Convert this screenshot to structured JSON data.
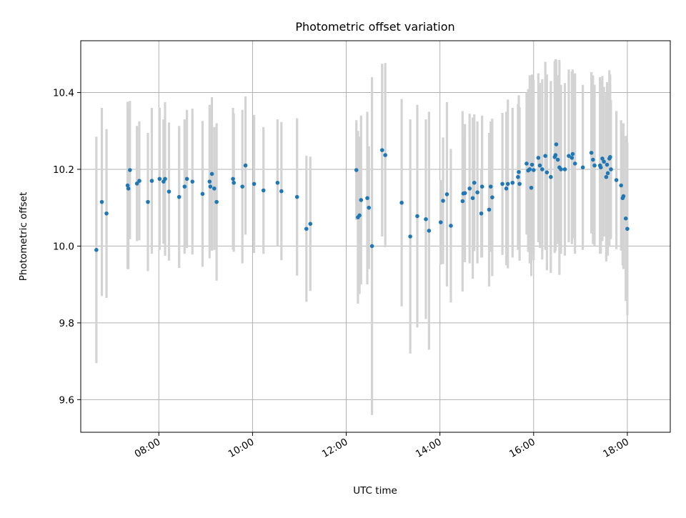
{
  "chart_data": {
    "type": "scatter",
    "title": "Photometric offset variation",
    "xlabel": "UTC time",
    "ylabel": "Photometric offset",
    "x_ticks": [
      "08:00",
      "10:00",
      "12:00",
      "14:00",
      "16:00",
      "18:00"
    ],
    "y_ticks": [
      "9.6",
      "9.8",
      "10.0",
      "10.2",
      "10.4"
    ],
    "xlim": [
      "06:20",
      "18:55"
    ],
    "ylim": [
      9.515,
      10.535
    ],
    "grid": true,
    "legend": "none",
    "colors": {
      "points": "#1f77b4",
      "errorbars": "#d3d3d3",
      "grid": "#b0b0b0"
    },
    "series": [
      {
        "points": [
          {
            "x": "06:40",
            "y": 9.99,
            "err": 0.295
          },
          {
            "x": "06:47",
            "y": 10.115,
            "err": 0.245
          },
          {
            "x": "06:53",
            "y": 10.085,
            "err": 0.22
          },
          {
            "x": "07:20",
            "y": 10.158,
            "err": 0.218
          },
          {
            "x": "07:21",
            "y": 10.15,
            "err": 0.21
          },
          {
            "x": "07:23",
            "y": 10.198,
            "err": 0.18
          },
          {
            "x": "07:32",
            "y": 10.163,
            "err": 0.15
          },
          {
            "x": "07:35",
            "y": 10.17,
            "err": 0.155
          },
          {
            "x": "07:46",
            "y": 10.115,
            "err": 0.18
          },
          {
            "x": "07:51",
            "y": 10.17,
            "err": 0.19
          },
          {
            "x": "08:01",
            "y": 10.175,
            "err": 0.185
          },
          {
            "x": "08:06",
            "y": 10.168,
            "err": 0.162
          },
          {
            "x": "08:08",
            "y": 10.175,
            "err": 0.2
          },
          {
            "x": "08:13",
            "y": 10.142,
            "err": 0.18
          },
          {
            "x": "08:26",
            "y": 10.128,
            "err": 0.185
          },
          {
            "x": "08:33",
            "y": 10.155,
            "err": 0.175
          },
          {
            "x": "08:36",
            "y": 10.175,
            "err": 0.18
          },
          {
            "x": "08:43",
            "y": 10.168,
            "err": 0.19
          },
          {
            "x": "08:56",
            "y": 10.136,
            "err": 0.19
          },
          {
            "x": "09:05",
            "y": 10.168,
            "err": 0.2
          },
          {
            "x": "09:06",
            "y": 10.155,
            "err": 0.16
          },
          {
            "x": "09:08",
            "y": 10.188,
            "err": 0.2
          },
          {
            "x": "09:11",
            "y": 10.15,
            "err": 0.16
          },
          {
            "x": "09:14",
            "y": 10.115,
            "err": 0.205
          },
          {
            "x": "09:35",
            "y": 10.175,
            "err": 0.185
          },
          {
            "x": "09:36",
            "y": 10.165,
            "err": 0.18
          },
          {
            "x": "09:47",
            "y": 10.155,
            "err": 0.2
          },
          {
            "x": "09:51",
            "y": 10.21,
            "err": 0.18
          },
          {
            "x": "10:02",
            "y": 10.162,
            "err": 0.18
          },
          {
            "x": "10:14",
            "y": 10.145,
            "err": 0.165
          },
          {
            "x": "10:32",
            "y": 10.165,
            "err": 0.165
          },
          {
            "x": "10:37",
            "y": 10.143,
            "err": 0.18
          },
          {
            "x": "10:57",
            "y": 10.128,
            "err": 0.205
          },
          {
            "x": "11:09",
            "y": 10.045,
            "err": 0.19
          },
          {
            "x": "11:14",
            "y": 10.058,
            "err": 0.175
          },
          {
            "x": "12:13",
            "y": 10.198,
            "err": 0.13
          },
          {
            "x": "12:15",
            "y": 10.075,
            "err": 0.225
          },
          {
            "x": "12:17",
            "y": 10.08,
            "err": 0.205
          },
          {
            "x": "12:19",
            "y": 10.12,
            "err": 0.22
          },
          {
            "x": "12:27",
            "y": 10.125,
            "err": 0.225
          },
          {
            "x": "12:29",
            "y": 10.1,
            "err": 0.16
          },
          {
            "x": "12:33",
            "y": 10.0,
            "err": 0.44
          },
          {
            "x": "12:46",
            "y": 10.25,
            "err": 0.225
          },
          {
            "x": "12:50",
            "y": 10.237,
            "err": 0.24
          },
          {
            "x": "13:11",
            "y": 10.113,
            "err": 0.27
          },
          {
            "x": "13:22",
            "y": 10.025,
            "err": 0.305
          },
          {
            "x": "13:31",
            "y": 10.078,
            "err": 0.29
          },
          {
            "x": "13:42",
            "y": 10.07,
            "err": 0.26
          },
          {
            "x": "13:46",
            "y": 10.04,
            "err": 0.31
          },
          {
            "x": "14:01",
            "y": 10.062,
            "err": 0.11
          },
          {
            "x": "14:04",
            "y": 10.118,
            "err": 0.165
          },
          {
            "x": "14:09",
            "y": 10.135,
            "err": 0.24
          },
          {
            "x": "14:14",
            "y": 10.053,
            "err": 0.2
          },
          {
            "x": "14:29",
            "y": 10.117,
            "err": 0.235
          },
          {
            "x": "14:30",
            "y": 10.137,
            "err": 0.145
          },
          {
            "x": "14:32",
            "y": 10.138,
            "err": 0.18
          },
          {
            "x": "14:38",
            "y": 10.15,
            "err": 0.195
          },
          {
            "x": "14:42",
            "y": 10.125,
            "err": 0.21
          },
          {
            "x": "14:44",
            "y": 10.165,
            "err": 0.178
          },
          {
            "x": "14:48",
            "y": 10.14,
            "err": 0.185
          },
          {
            "x": "14:53",
            "y": 10.085,
            "err": 0.115
          },
          {
            "x": "14:54",
            "y": 10.155,
            "err": 0.185
          },
          {
            "x": "15:03",
            "y": 10.095,
            "err": 0.2
          },
          {
            "x": "15:05",
            "y": 10.155,
            "err": 0.17
          },
          {
            "x": "15:07",
            "y": 10.127,
            "err": 0.205
          },
          {
            "x": "15:20",
            "y": 10.162,
            "err": 0.185
          },
          {
            "x": "15:25",
            "y": 10.15,
            "err": 0.2
          },
          {
            "x": "15:27",
            "y": 10.162,
            "err": 0.22
          },
          {
            "x": "15:33",
            "y": 10.165,
            "err": 0.195
          },
          {
            "x": "15:40",
            "y": 10.18,
            "err": 0.19
          },
          {
            "x": "15:41",
            "y": 10.193,
            "err": 0.2
          },
          {
            "x": "15:42",
            "y": 10.162,
            "err": 0.2
          },
          {
            "x": "15:51",
            "y": 10.215,
            "err": 0.185
          },
          {
            "x": "15:53",
            "y": 10.197,
            "err": 0.212
          },
          {
            "x": "15:55",
            "y": 10.2,
            "err": 0.245
          },
          {
            "x": "15:57",
            "y": 10.152,
            "err": 0.23
          },
          {
            "x": "15:58",
            "y": 10.212,
            "err": 0.235
          },
          {
            "x": "16:00",
            "y": 10.198,
            "err": 0.235
          },
          {
            "x": "16:06",
            "y": 10.23,
            "err": 0.22
          },
          {
            "x": "16:08",
            "y": 10.21,
            "err": 0.215
          },
          {
            "x": "16:11",
            "y": 10.2,
            "err": 0.235
          },
          {
            "x": "16:15",
            "y": 10.235,
            "err": 0.245
          },
          {
            "x": "16:17",
            "y": 10.192,
            "err": 0.255
          },
          {
            "x": "16:22",
            "y": 10.18,
            "err": 0.25
          },
          {
            "x": "16:27",
            "y": 10.232,
            "err": 0.25
          },
          {
            "x": "16:28",
            "y": 10.237,
            "err": 0.25
          },
          {
            "x": "16:29",
            "y": 10.265,
            "err": 0.22
          },
          {
            "x": "16:31",
            "y": 10.225,
            "err": 0.22
          },
          {
            "x": "16:33",
            "y": 10.205,
            "err": 0.28
          },
          {
            "x": "16:35",
            "y": 10.2,
            "err": 0.22
          },
          {
            "x": "16:40",
            "y": 10.2,
            "err": 0.225
          },
          {
            "x": "16:45",
            "y": 10.235,
            "err": 0.225
          },
          {
            "x": "16:49",
            "y": 10.23,
            "err": 0.225
          },
          {
            "x": "16:50",
            "y": 10.24,
            "err": 0.22
          },
          {
            "x": "16:53",
            "y": 10.215,
            "err": 0.235
          },
          {
            "x": "17:03",
            "y": 10.205,
            "err": 0.215
          },
          {
            "x": "17:14",
            "y": 10.243,
            "err": 0.21
          },
          {
            "x": "17:16",
            "y": 10.225,
            "err": 0.22
          },
          {
            "x": "17:18",
            "y": 10.21,
            "err": 0.21
          },
          {
            "x": "17:25",
            "y": 10.21,
            "err": 0.23
          },
          {
            "x": "17:26",
            "y": 10.205,
            "err": 0.225
          },
          {
            "x": "17:28",
            "y": 10.228,
            "err": 0.215
          },
          {
            "x": "17:30",
            "y": 10.22,
            "err": 0.195
          },
          {
            "x": "17:33",
            "y": 10.18,
            "err": 0.22
          },
          {
            "x": "17:34",
            "y": 10.212,
            "err": 0.215
          },
          {
            "x": "17:35",
            "y": 10.19,
            "err": 0.215
          },
          {
            "x": "17:37",
            "y": 10.228,
            "err": 0.23
          },
          {
            "x": "17:38",
            "y": 10.232,
            "err": 0.215
          },
          {
            "x": "17:39",
            "y": 10.2,
            "err": 0.18
          },
          {
            "x": "17:46",
            "y": 10.172,
            "err": 0.18
          },
          {
            "x": "17:52",
            "y": 10.158,
            "err": 0.17
          },
          {
            "x": "17:54",
            "y": 10.125,
            "err": 0.175
          },
          {
            "x": "17:55",
            "y": 10.13,
            "err": 0.19
          },
          {
            "x": "17:58",
            "y": 10.072,
            "err": 0.215
          },
          {
            "x": "18:00",
            "y": 10.045,
            "err": 0.225
          }
        ]
      }
    ]
  }
}
